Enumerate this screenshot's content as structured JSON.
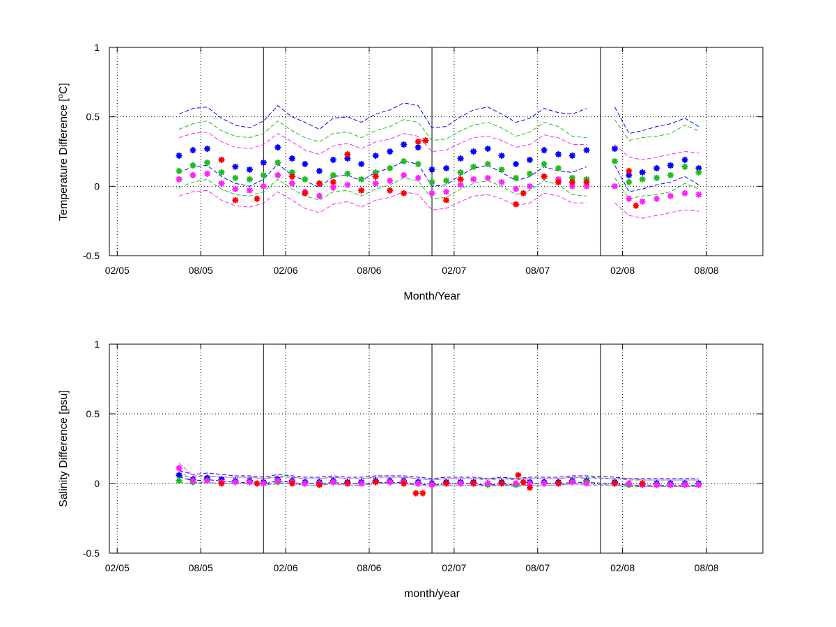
{
  "chart_data": [
    {
      "type": "scatter",
      "xlabel": "Month/Year",
      "ylabel": "Temperature Difference [°C]",
      "ylabel_parts": {
        "prefix": "Temperature Difference [",
        "sup": "o",
        "suffix": "C]"
      },
      "ylim": [
        -0.5,
        1
      ],
      "yticks": [
        -0.5,
        0,
        0.5,
        1
      ],
      "ytick_labels": [
        "-0.5",
        "0",
        "0.5",
        "1"
      ],
      "xlim": [
        "2005-01-15",
        "2008-12-01"
      ],
      "xticks": [
        "2005-02-01",
        "2005-08-01",
        "2006-02-01",
        "2006-08-01",
        "2007-02-01",
        "2007-08-01",
        "2008-02-01",
        "2008-08-01"
      ],
      "xtick_labels": [
        "02/05",
        "08/05",
        "02/06",
        "08/06",
        "02/07",
        "08/07",
        "02/08",
        "08/08"
      ],
      "grid": true,
      "vertical_lines": [
        "2005-12-15",
        "2006-12-15",
        "2007-12-15"
      ],
      "series": [
        {
          "color": "#0000ff",
          "x": [
            "2005-06-15",
            "2005-07-15",
            "2005-08-15",
            "2005-09-15",
            "2005-10-15",
            "2005-11-15",
            "2005-12-15",
            "2006-01-15",
            "2006-02-15",
            "2006-03-15",
            "2006-04-15",
            "2006-05-15",
            "2006-06-15",
            "2006-07-15",
            "2006-08-15",
            "2006-09-15",
            "2006-10-15",
            "2006-11-15",
            "2006-12-15",
            "2007-01-15",
            "2007-02-15",
            "2007-03-15",
            "2007-04-15",
            "2007-05-15",
            "2007-06-15",
            "2007-07-15",
            "2007-08-15",
            "2007-09-15",
            "2007-10-15",
            "2007-11-15",
            "2007-12-15",
            "2008-01-15",
            "2008-02-15",
            "2008-03-15",
            "2008-04-15",
            "2008-05-15",
            "2008-06-15",
            "2008-07-15"
          ],
          "values": [
            0.22,
            0.26,
            0.27,
            0.19,
            0.14,
            0.12,
            0.17,
            0.28,
            0.2,
            0.16,
            0.11,
            0.19,
            0.2,
            0.16,
            0.22,
            0.25,
            0.3,
            0.28,
            0.12,
            0.13,
            0.2,
            0.25,
            0.27,
            0.22,
            0.16,
            0.19,
            0.26,
            0.23,
            0.22,
            0.26,
            null,
            0.27,
            0.08,
            0.1,
            0.13,
            0.15,
            0.19,
            0.13
          ]
        },
        {
          "color": "#22bb22",
          "x": [
            "2005-06-15",
            "2005-07-15",
            "2005-08-15",
            "2005-09-15",
            "2005-10-15",
            "2005-11-15",
            "2005-12-15",
            "2006-01-15",
            "2006-02-15",
            "2006-03-15",
            "2006-04-15",
            "2006-05-15",
            "2006-06-15",
            "2006-07-15",
            "2006-08-15",
            "2006-09-15",
            "2006-10-15",
            "2006-11-15",
            "2006-12-15",
            "2007-01-15",
            "2007-02-15",
            "2007-03-15",
            "2007-04-15",
            "2007-05-15",
            "2007-06-15",
            "2007-07-15",
            "2007-08-15",
            "2007-09-15",
            "2007-10-15",
            "2007-11-15",
            "2007-12-15",
            "2008-01-15",
            "2008-02-15",
            "2008-03-15",
            "2008-04-15",
            "2008-05-15",
            "2008-06-15",
            "2008-07-15"
          ],
          "values": [
            0.11,
            0.15,
            0.17,
            0.1,
            0.06,
            0.05,
            0.08,
            0.17,
            0.1,
            0.05,
            0.02,
            0.08,
            0.09,
            0.05,
            0.1,
            0.13,
            0.18,
            0.16,
            0.03,
            0.04,
            0.1,
            0.14,
            0.16,
            0.12,
            0.06,
            0.09,
            0.16,
            0.13,
            0.06,
            0.05,
            null,
            0.18,
            0.03,
            0.05,
            0.06,
            0.08,
            0.14,
            0.1
          ]
        },
        {
          "color": "#ff22ff",
          "x": [
            "2005-06-15",
            "2005-07-15",
            "2005-08-15",
            "2005-09-15",
            "2005-10-15",
            "2005-11-15",
            "2005-12-15",
            "2006-01-15",
            "2006-02-15",
            "2006-03-15",
            "2006-04-15",
            "2006-05-15",
            "2006-06-15",
            "2006-07-15",
            "2006-08-15",
            "2006-09-15",
            "2006-10-15",
            "2006-11-15",
            "2006-12-15",
            "2007-01-15",
            "2007-02-15",
            "2007-03-15",
            "2007-04-15",
            "2007-05-15",
            "2007-06-15",
            "2007-07-15",
            "2007-08-15",
            "2007-09-15",
            "2007-10-15",
            "2007-11-15",
            "2007-12-15",
            "2008-01-15",
            "2008-02-15",
            "2008-03-15",
            "2008-04-15",
            "2008-05-15",
            "2008-06-15",
            "2008-07-15"
          ],
          "values": [
            0.05,
            0.08,
            0.09,
            0.02,
            -0.02,
            -0.03,
            0.0,
            0.08,
            0.02,
            -0.04,
            -0.07,
            -0.01,
            0.01,
            -0.03,
            0.02,
            0.04,
            0.08,
            0.06,
            -0.05,
            -0.04,
            0.01,
            0.05,
            0.06,
            0.03,
            -0.02,
            0.0,
            0.07,
            0.05,
            0.0,
            0.0,
            null,
            0.0,
            -0.09,
            -0.11,
            -0.09,
            -0.07,
            -0.05,
            -0.06
          ]
        },
        {
          "color": "#ff0000",
          "x": [
            "2005-09-15",
            "2005-10-15",
            "2005-12-01",
            "2006-02-15",
            "2006-03-15",
            "2006-04-15",
            "2006-05-15",
            "2006-06-15",
            "2006-07-15",
            "2006-08-15",
            "2006-09-15",
            "2006-10-15",
            "2006-11-15",
            "2006-12-01",
            "2007-01-15",
            "2007-02-15",
            "2007-06-15",
            "2007-07-01",
            "2007-08-15",
            "2007-09-15",
            "2007-10-15",
            "2007-11-15",
            "2008-02-15",
            "2008-03-01"
          ],
          "values": [
            0.19,
            -0.1,
            -0.09,
            0.07,
            -0.05,
            0.02,
            0.03,
            0.23,
            -0.03,
            0.07,
            -0.03,
            -0.05,
            0.32,
            0.33,
            -0.1,
            0.05,
            -0.13,
            -0.05,
            0.07,
            0.03,
            0.03,
            0.03,
            0.11,
            -0.14
          ]
        }
      ]
    },
    {
      "type": "scatter",
      "xlabel": "month/year",
      "ylabel": "Salinity Difference [psu]",
      "ylim": [
        -0.5,
        1
      ],
      "yticks": [
        -0.5,
        0,
        0.5,
        1
      ],
      "ytick_labels": [
        "-0.5",
        "0",
        "0.5",
        "1"
      ],
      "xlim": [
        "2005-01-15",
        "2008-12-01"
      ],
      "xticks": [
        "2005-02-01",
        "2005-08-01",
        "2006-02-01",
        "2006-08-01",
        "2007-02-01",
        "2007-08-01",
        "2008-02-01",
        "2008-08-01"
      ],
      "xtick_labels": [
        "02/05",
        "08/05",
        "02/06",
        "08/06",
        "02/07",
        "08/07",
        "02/08",
        "08/08"
      ],
      "grid": true,
      "vertical_lines": [
        "2005-12-15",
        "2006-12-15",
        "2007-12-15"
      ],
      "series": [
        {
          "color": "#0000ff",
          "x": [
            "2005-06-15",
            "2005-07-15",
            "2005-08-15",
            "2005-09-15",
            "2005-10-15",
            "2005-11-15",
            "2005-12-15",
            "2006-01-15",
            "2006-02-15",
            "2006-03-15",
            "2006-04-15",
            "2006-05-15",
            "2006-06-15",
            "2006-07-15",
            "2006-08-15",
            "2006-09-15",
            "2006-10-15",
            "2006-11-15",
            "2006-12-15",
            "2007-01-15",
            "2007-02-15",
            "2007-03-15",
            "2007-04-15",
            "2007-05-15",
            "2007-06-15",
            "2007-07-15",
            "2007-08-15",
            "2007-09-15",
            "2007-10-15",
            "2007-11-15",
            "2008-01-15",
            "2008-02-15",
            "2008-03-15",
            "2008-04-15",
            "2008-05-15",
            "2008-06-15",
            "2008-07-15"
          ],
          "values": [
            0.06,
            0.03,
            0.04,
            0.03,
            0.02,
            0.02,
            0.01,
            0.03,
            0.02,
            0.01,
            0.01,
            0.02,
            0.01,
            0.01,
            0.02,
            0.02,
            0.02,
            0.01,
            0.0,
            0.01,
            0.01,
            0.01,
            0.0,
            0.01,
            0.0,
            0.01,
            0.01,
            0.01,
            0.02,
            0.02,
            0.01,
            0.0,
            0.0,
            0.0,
            0.0,
            0.0,
            0.0
          ]
        },
        {
          "color": "#22bb22",
          "x": [
            "2005-06-15",
            "2005-07-15",
            "2005-08-15",
            "2005-09-15",
            "2005-10-15",
            "2005-11-15",
            "2005-12-15",
            "2006-01-15",
            "2006-02-15",
            "2006-03-15",
            "2006-04-15",
            "2006-05-15",
            "2006-06-15",
            "2006-07-15",
            "2006-08-15",
            "2006-09-15",
            "2006-10-15",
            "2006-11-15",
            "2006-12-15",
            "2007-01-15",
            "2007-02-15",
            "2007-03-15",
            "2007-04-15",
            "2007-05-15",
            "2007-06-15",
            "2007-07-15",
            "2007-08-15",
            "2007-09-15",
            "2007-10-15",
            "2007-11-15",
            "2008-01-15",
            "2008-02-15",
            "2008-03-15",
            "2008-04-15",
            "2008-05-15",
            "2008-06-15",
            "2008-07-15"
          ],
          "values": [
            0.02,
            0.01,
            0.02,
            0.01,
            0.01,
            0.01,
            0.0,
            0.01,
            0.01,
            0.0,
            0.0,
            0.01,
            0.0,
            0.0,
            0.01,
            0.01,
            0.01,
            0.0,
            -0.01,
            0.0,
            0.0,
            0.0,
            -0.01,
            0.0,
            -0.01,
            0.0,
            0.0,
            0.0,
            0.01,
            0.01,
            0.0,
            -0.01,
            -0.01,
            -0.01,
            -0.01,
            -0.01,
            -0.01
          ]
        },
        {
          "color": "#ff22ff",
          "x": [
            "2005-06-15",
            "2005-07-15",
            "2005-08-15",
            "2005-09-15",
            "2005-10-15",
            "2005-11-15",
            "2005-12-15",
            "2006-01-15",
            "2006-02-15",
            "2006-03-15",
            "2006-04-15",
            "2006-05-15",
            "2006-06-15",
            "2006-07-15",
            "2006-08-15",
            "2006-09-15",
            "2006-10-15",
            "2006-11-15",
            "2006-12-15",
            "2007-01-15",
            "2007-02-15",
            "2007-03-15",
            "2007-04-15",
            "2007-05-15",
            "2007-06-15",
            "2007-07-15",
            "2007-08-15",
            "2007-09-15",
            "2007-10-15",
            "2007-11-15",
            "2008-01-15",
            "2008-02-15",
            "2008-03-15",
            "2008-04-15",
            "2008-05-15",
            "2008-06-15",
            "2008-07-15"
          ],
          "values": [
            0.11,
            0.02,
            0.02,
            0.01,
            0.01,
            0.01,
            0.0,
            0.02,
            0.01,
            0.0,
            0.0,
            0.01,
            0.0,
            0.0,
            0.01,
            0.01,
            0.01,
            0.0,
            -0.01,
            0.0,
            0.0,
            0.0,
            0.0,
            0.0,
            0.0,
            0.0,
            0.0,
            0.0,
            0.01,
            0.0,
            0.0,
            0.0,
            -0.01,
            -0.01,
            -0.01,
            -0.01,
            -0.01
          ]
        },
        {
          "color": "#ff0000",
          "x": [
            "2005-09-15",
            "2005-12-01",
            "2006-02-15",
            "2006-04-15",
            "2006-06-15",
            "2006-08-15",
            "2006-10-15",
            "2006-11-10",
            "2006-11-25",
            "2007-01-15",
            "2007-03-15",
            "2007-05-15",
            "2007-06-20",
            "2007-07-01",
            "2007-07-15",
            "2007-09-15",
            "2008-01-15",
            "2008-03-15"
          ],
          "values": [
            0.0,
            0.0,
            0.0,
            -0.01,
            0.0,
            0.01,
            0.0,
            -0.07,
            -0.07,
            0.0,
            0.0,
            0.0,
            0.06,
            0.01,
            -0.03,
            0.0,
            0.0,
            0.0
          ]
        }
      ]
    }
  ]
}
